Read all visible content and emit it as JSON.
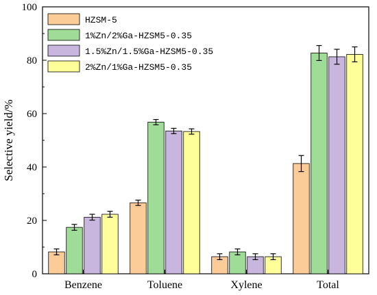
{
  "chart_data": {
    "type": "bar",
    "title": "",
    "xlabel": "",
    "ylabel": "Selective yield/%",
    "ylim": [
      0,
      100
    ],
    "yticks": [
      0,
      20,
      40,
      60,
      80,
      100
    ],
    "grid": false,
    "legend_position": "top-left",
    "categories": [
      "Benzene",
      "Toluene",
      "Xylene",
      "Total"
    ],
    "series": [
      {
        "name": "HZSM-5",
        "color": "#FBCB98",
        "values": [
          8.2,
          26.6,
          6.4,
          41.3
        ],
        "errors": [
          1.1,
          1.0,
          1.1,
          3.0
        ]
      },
      {
        "name": "1%Zn/2%Ga-HZSM5-0.35",
        "color": "#9FDC98",
        "values": [
          17.4,
          56.8,
          8.2,
          82.7
        ],
        "errors": [
          1.1,
          1.0,
          1.1,
          2.8
        ]
      },
      {
        "name": "1.5%Zn/1.5%Ga-HZSM5-0.35",
        "color": "#C8B6DF",
        "values": [
          21.2,
          53.5,
          6.4,
          81.3
        ],
        "errors": [
          1.1,
          1.0,
          1.1,
          2.8
        ]
      },
      {
        "name": "2%Zn/1%Ga-HZSM5-0.35",
        "color": "#FFFF99",
        "values": [
          22.3,
          53.3,
          6.4,
          82.2
        ],
        "errors": [
          1.1,
          1.0,
          1.1,
          2.8
        ]
      }
    ]
  }
}
